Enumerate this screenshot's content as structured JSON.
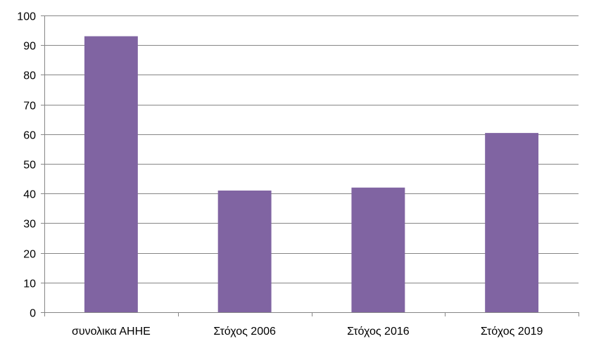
{
  "chart_data": {
    "type": "bar",
    "categories": [
      "συνολικα ΑΗΗΕ",
      "Στόχος 2006",
      "Στόχος 2016",
      "Στόχος 2019"
    ],
    "values": [
      93,
      41,
      42,
      60.4
    ],
    "ylim": [
      0,
      100
    ],
    "yticks": [
      0,
      10,
      20,
      30,
      40,
      50,
      60,
      70,
      80,
      90,
      100
    ],
    "grid": true,
    "legend": "none",
    "title": "",
    "xlabel": "",
    "ylabel": "",
    "bar_color": "#8064A2",
    "grid_color": "#868686"
  }
}
